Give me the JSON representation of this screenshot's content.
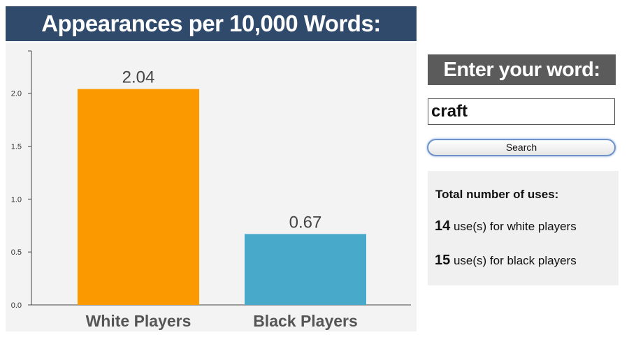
{
  "chart": {
    "title": "Appearances per 10,000 Words:"
  },
  "chart_data": {
    "type": "bar",
    "categories": [
      "White Players",
      "Black Players"
    ],
    "values": [
      2.04,
      0.67
    ],
    "data_labels": [
      "2.04",
      "0.67"
    ],
    "colors": [
      "#fb9a00",
      "#48a9cb"
    ],
    "title": "Appearances per 10,000 Words:",
    "ylim": [
      0,
      2.4
    ],
    "yticks": [
      0.0,
      0.5,
      1.0,
      1.5,
      2.0
    ],
    "ytick_labels": [
      "0.0",
      "0.5",
      "1.0",
      "1.5",
      "2.0"
    ],
    "grid": false
  },
  "search": {
    "header": "Enter your word:",
    "value": "craft",
    "button_label": "Search"
  },
  "totals": {
    "title": "Total number of uses:",
    "white_count": "14",
    "white_text": " use(s) for white players",
    "black_count": "15",
    "black_text": " use(s) for black players"
  },
  "colors": {
    "title_bar": "#2f4a6b",
    "white_players": "#fb9a00",
    "black_players": "#48a9cb",
    "word_header": "#5b5b5b"
  }
}
